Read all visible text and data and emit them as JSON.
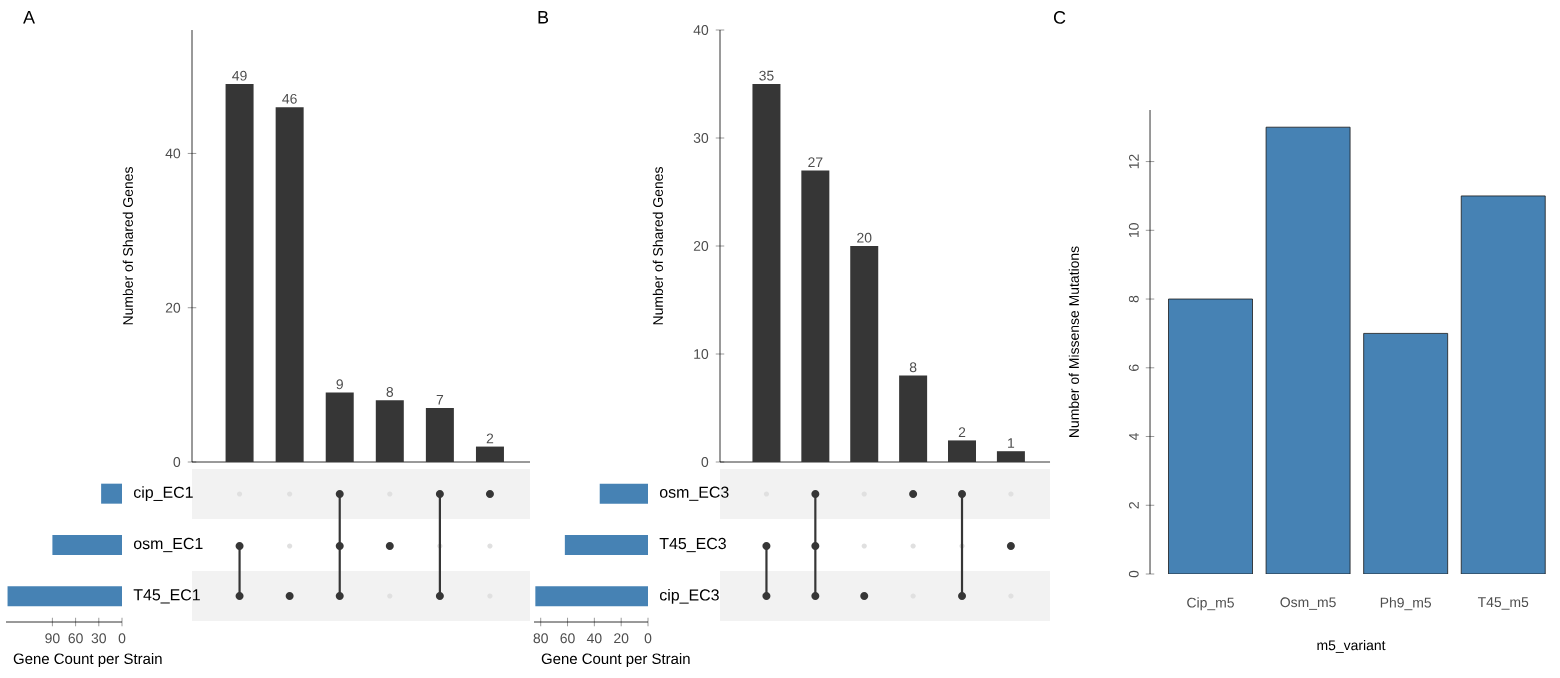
{
  "chart_data": [
    {
      "type": "bar",
      "ylabel": "Number of Shared Genes",
      "categories": [
        null,
        null,
        null,
        null,
        null,
        null
      ],
      "values": [
        49,
        46,
        9,
        8,
        7,
        2
      ],
      "color": "#363636",
      "ylim": [
        0,
        56
      ],
      "yticks": [
        0,
        20,
        40
      ],
      "data_labels": true
    },
    {
      "type": "bar",
      "title": "A",
      "orientation": "horizontal",
      "xlabel": "Gene Count per Strain",
      "categories": [
        "cip_EC1",
        "osm_EC1",
        "T45_EC1"
      ],
      "values": [
        27,
        90,
        148
      ],
      "color": "#4682b4",
      "xlim": [
        150,
        0
      ],
      "xticks": [
        0,
        30,
        60,
        90
      ]
    },
    {
      "type": "bar",
      "ylabel": "Number of Shared Genes",
      "categories": [
        null,
        null,
        null,
        null,
        null,
        null
      ],
      "values": [
        35,
        27,
        20,
        8,
        2,
        1
      ],
      "color": "#363636",
      "ylim": [
        0,
        40
      ],
      "yticks": [
        0,
        10,
        20,
        30,
        40
      ],
      "data_labels": true
    },
    {
      "type": "bar",
      "title": "B",
      "orientation": "horizontal",
      "xlabel": "Gene Count per Strain",
      "categories": [
        "osm_EC3",
        "T45_EC3",
        "cip_EC3"
      ],
      "values": [
        36,
        62,
        84
      ],
      "color": "#4682b4",
      "xlim": [
        85,
        0
      ],
      "xticks": [
        0,
        20,
        40,
        60,
        80
      ]
    },
    {
      "type": "bar",
      "title": "C",
      "xlabel": "m5_variant",
      "ylabel": "Number of Missense Mutations",
      "categories": [
        "Cip_m5",
        "Osm_m5",
        "Ph9_m5",
        "T45_m5"
      ],
      "values": [
        8,
        13,
        7,
        11
      ],
      "color": "#4682b4",
      "ylim": [
        0,
        13.5
      ],
      "yticks": [
        0,
        2,
        4,
        6,
        8,
        10,
        12
      ]
    }
  ]
}
